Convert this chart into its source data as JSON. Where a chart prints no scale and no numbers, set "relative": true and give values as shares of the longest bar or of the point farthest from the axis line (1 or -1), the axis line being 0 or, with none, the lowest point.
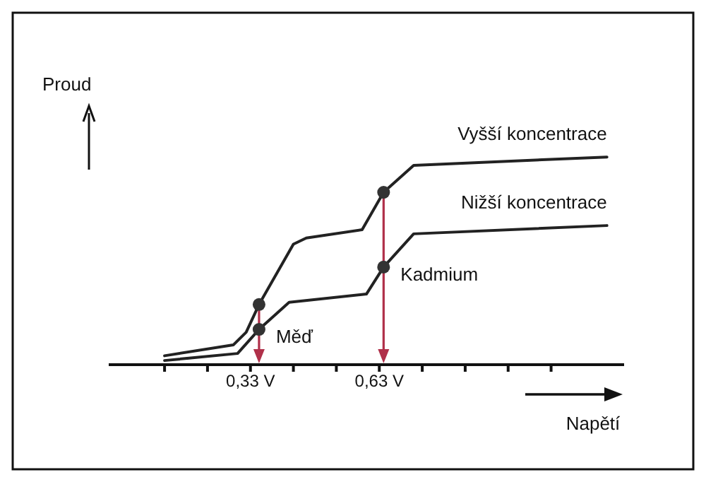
{
  "chart_data": {
    "type": "line",
    "relative": true,
    "xlabel": "Napětí",
    "ylabel": "Proud",
    "xlim": [
      0,
      1.2
    ],
    "xticks": [
      {
        "value": 0.13,
        "label": null
      },
      {
        "value": 0.23,
        "label": null
      },
      {
        "value": 0.33,
        "label": "0,33 V"
      },
      {
        "value": 0.43,
        "label": null
      },
      {
        "value": 0.53,
        "label": null
      },
      {
        "value": 0.63,
        "label": "0,63 V"
      },
      {
        "value": 0.73,
        "label": null
      },
      {
        "value": 0.83,
        "label": null
      },
      {
        "value": 0.93,
        "label": null
      },
      {
        "value": 1.03,
        "label": null
      }
    ],
    "series": [
      {
        "name": "Vyšší koncentrace",
        "color": "#222222",
        "marker": "none",
        "x": [
          0.13,
          0.29,
          0.32,
          0.35,
          0.43,
          0.46,
          0.59,
          0.64,
          0.71,
          1.16
        ],
        "values": [
          0.043,
          0.095,
          0.156,
          0.29,
          0.58,
          0.61,
          0.65,
          0.83,
          0.96,
          1
        ]
      },
      {
        "name": "Nižší koncentrace",
        "color": "#222222",
        "marker": "none",
        "x": [
          0.13,
          0.3,
          0.35,
          0.42,
          0.6,
          0.64,
          0.71,
          1.16
        ],
        "values": [
          0.02,
          0.054,
          0.17,
          0.3,
          0.34,
          0.47,
          0.63,
          0.67
        ]
      },
      {
        "type": "scatter",
        "color": "#333333",
        "marker": "circle",
        "x": [
          0.35,
          0.35,
          0.64,
          0.64
        ],
        "values": [
          0.29,
          0.17,
          0.83,
          0.47
        ]
      }
    ],
    "annotations": [
      {
        "text": "Kadmium",
        "x": 0.64,
        "y": 0.47
      },
      {
        "text": "Měď",
        "x": 0.35,
        "y": 0.17
      }
    ]
  }
}
